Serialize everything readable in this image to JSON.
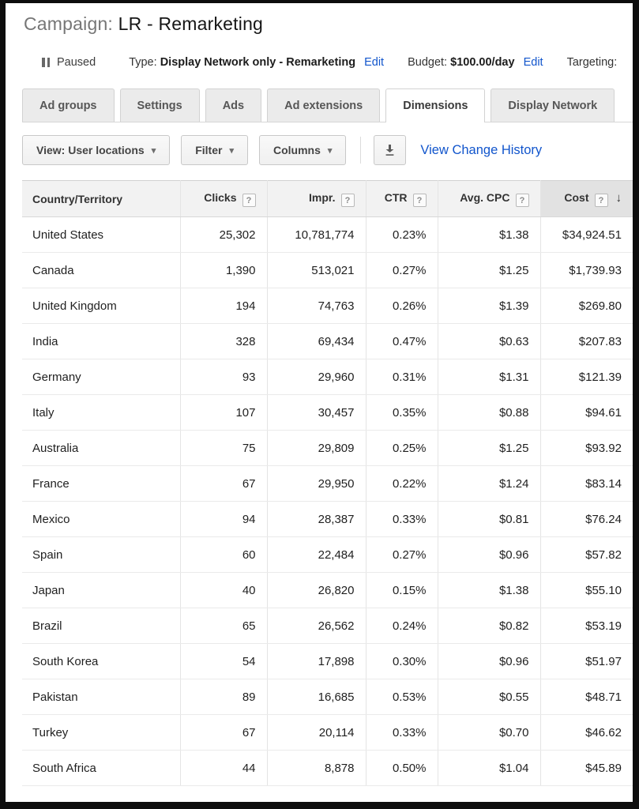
{
  "header": {
    "label": "Campaign:",
    "campaign_name": "LR - Remarketing"
  },
  "status": {
    "state": "Paused",
    "state_icon": "pause-icon",
    "type_label": "Type:",
    "type_value": "Display Network only - Remarketing",
    "type_edit_label": "Edit",
    "budget_label": "Budget:",
    "budget_value": "$100.00/day",
    "budget_edit_label": "Edit",
    "targeting_label": "Targeting:"
  },
  "tabs": {
    "items": [
      "Ad groups",
      "Settings",
      "Ads",
      "Ad extensions",
      "Dimensions",
      "Display Network"
    ],
    "active_tab": "Dimensions"
  },
  "toolbar": {
    "view_button": "View: User locations",
    "filter_button": "Filter",
    "columns_button": "Columns",
    "download_icon": "download-icon",
    "change_history_link": "View Change History"
  },
  "table": {
    "columns": [
      {
        "label": "Country/Territory",
        "help": false,
        "sorted": false
      },
      {
        "label": "Clicks",
        "help": true,
        "sorted": false
      },
      {
        "label": "Impr.",
        "help": true,
        "sorted": false
      },
      {
        "label": "CTR",
        "help": true,
        "sorted": false
      },
      {
        "label": "Avg. CPC",
        "help": true,
        "sorted": false
      },
      {
        "label": "Cost",
        "help": true,
        "sorted": true,
        "sort_direction": "desc"
      }
    ],
    "rows": [
      [
        "United States",
        "25,302",
        "10,781,774",
        "0.23%",
        "$1.38",
        "$34,924.51"
      ],
      [
        "Canada",
        "1,390",
        "513,021",
        "0.27%",
        "$1.25",
        "$1,739.93"
      ],
      [
        "United Kingdom",
        "194",
        "74,763",
        "0.26%",
        "$1.39",
        "$269.80"
      ],
      [
        "India",
        "328",
        "69,434",
        "0.47%",
        "$0.63",
        "$207.83"
      ],
      [
        "Germany",
        "93",
        "29,960",
        "0.31%",
        "$1.31",
        "$121.39"
      ],
      [
        "Italy",
        "107",
        "30,457",
        "0.35%",
        "$0.88",
        "$94.61"
      ],
      [
        "Australia",
        "75",
        "29,809",
        "0.25%",
        "$1.25",
        "$93.92"
      ],
      [
        "France",
        "67",
        "29,950",
        "0.22%",
        "$1.24",
        "$83.14"
      ],
      [
        "Mexico",
        "94",
        "28,387",
        "0.33%",
        "$0.81",
        "$76.24"
      ],
      [
        "Spain",
        "60",
        "22,484",
        "0.27%",
        "$0.96",
        "$57.82"
      ],
      [
        "Japan",
        "40",
        "26,820",
        "0.15%",
        "$1.38",
        "$55.10"
      ],
      [
        "Brazil",
        "65",
        "26,562",
        "0.24%",
        "$0.82",
        "$53.19"
      ],
      [
        "South Korea",
        "54",
        "17,898",
        "0.30%",
        "$0.96",
        "$51.97"
      ],
      [
        "Pakistan",
        "89",
        "16,685",
        "0.53%",
        "$0.55",
        "$48.71"
      ],
      [
        "Turkey",
        "67",
        "20,114",
        "0.33%",
        "$0.70",
        "$46.62"
      ],
      [
        "South Africa",
        "44",
        "8,878",
        "0.50%",
        "$1.04",
        "$45.89"
      ]
    ]
  },
  "colors": {
    "link_blue": "#1155cc",
    "title_gray": "#767676",
    "header_row_bg": "#f2f2f2",
    "sorted_column_bg": "#e2e2e2",
    "tab_bg": "#ebebeb",
    "frame_border": "#0d0d0d"
  }
}
